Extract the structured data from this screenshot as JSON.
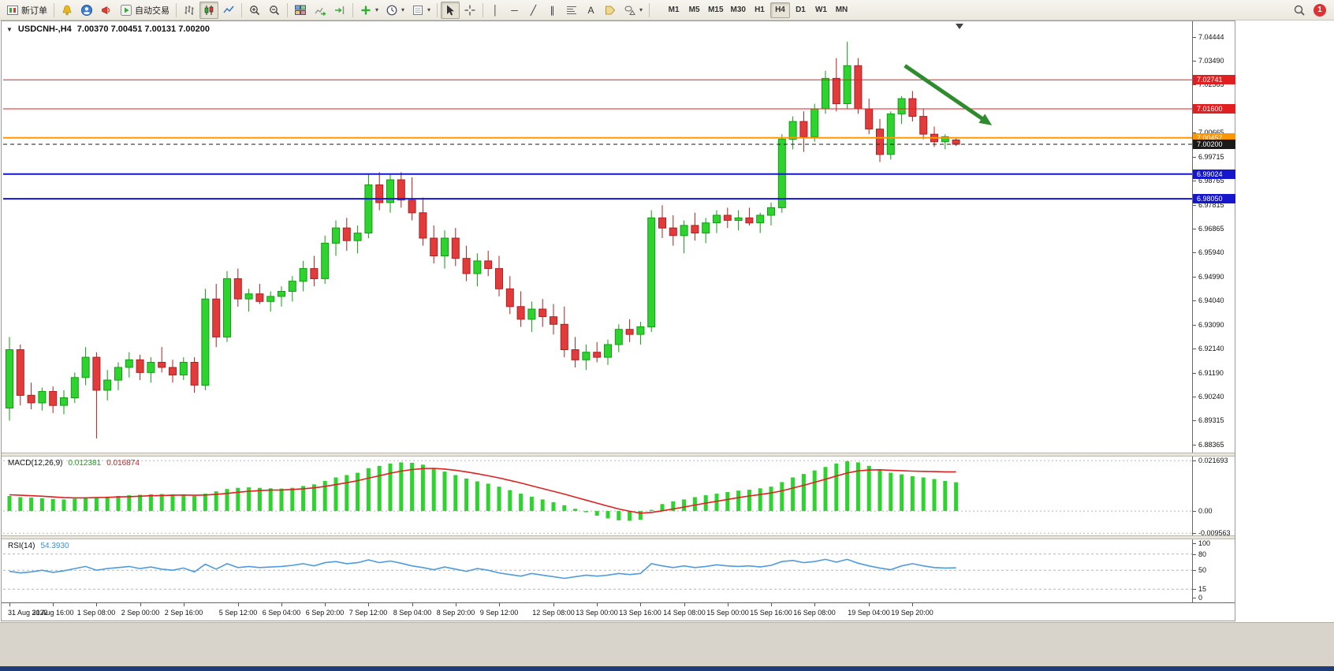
{
  "toolbar": {
    "new_order_label": "新订单",
    "autotrading_label": "自动交易",
    "timeframes": [
      "M1",
      "M5",
      "M15",
      "M30",
      "H1",
      "H4",
      "D1",
      "W1",
      "MN"
    ],
    "active_timeframe": "H4",
    "notification_count": "1"
  },
  "icons": {
    "dropdown": "▾",
    "title_caret": "▼",
    "vline": "│",
    "hline": "─",
    "trendline": "╱",
    "channel": "∥",
    "text_tool": "A"
  },
  "title": {
    "symbol_period": "USDCNH-,H4",
    "ohlc": "7.00370 7.00451 7.00131 7.00200"
  },
  "price_axis": {
    "ticks": [
      "7.04444",
      "7.03490",
      "7.02565",
      "7.00665",
      "6.99715",
      "6.98765",
      "6.97815",
      "6.96865",
      "6.95940",
      "6.94990",
      "6.94040",
      "6.93090",
      "6.92140",
      "6.91190",
      "6.90240",
      "6.89315",
      "6.88365"
    ]
  },
  "time_axis": {
    "labels": [
      {
        "text": "31 Aug 2022",
        "bar": 0
      },
      {
        "text": "31 Aug 16:00",
        "bar": 4
      },
      {
        "text": "1 Sep 08:00",
        "bar": 8
      },
      {
        "text": "2 Sep 00:00",
        "bar": 12
      },
      {
        "text": "2 Sep 16:00",
        "bar": 16
      },
      {
        "text": "5 Sep 12:00",
        "bar": 21
      },
      {
        "text": "6 Sep 04:00",
        "bar": 25
      },
      {
        "text": "6 Sep 20:00",
        "bar": 29
      },
      {
        "text": "7 Sep 12:00",
        "bar": 33
      },
      {
        "text": "8 Sep 04:00",
        "bar": 37
      },
      {
        "text": "8 Sep 20:00",
        "bar": 41
      },
      {
        "text": "9 Sep 12:00",
        "bar": 45
      },
      {
        "text": "12 Sep 08:00",
        "bar": 50
      },
      {
        "text": "13 Sep 00:00",
        "bar": 54
      },
      {
        "text": "13 Sep 16:00",
        "bar": 58
      },
      {
        "text": "14 Sep 08:00",
        "bar": 62
      },
      {
        "text": "15 Sep 00:00",
        "bar": 66
      },
      {
        "text": "15 Sep 16:00",
        "bar": 70
      },
      {
        "text": "16 Sep 08:00",
        "bar": 74
      },
      {
        "text": "19 Sep 04:00",
        "bar": 79
      },
      {
        "text": "19 Sep 20:00",
        "bar": 83
      }
    ]
  },
  "indicators": {
    "macd": {
      "name": "MACD(12,26,9)",
      "value_main": "0.012381",
      "value_signal": "0.016874",
      "axis": [
        {
          "text": "0.021693",
          "value": 0.021693
        },
        {
          "text": "0.00",
          "value": 0
        },
        {
          "text": "-0.009563",
          "value": -0.009563
        }
      ]
    },
    "rsi": {
      "name": "RSI(14)",
      "value": "54.3930",
      "axis": [
        {
          "text": "100",
          "value": 100
        },
        {
          "text": "80",
          "value": 80
        },
        {
          "text": "50",
          "value": 50
        },
        {
          "text": "15",
          "value": 15
        },
        {
          "text": "0",
          "value": 0
        }
      ],
      "dashed_levels": [
        80,
        50,
        15
      ]
    }
  },
  "chart_data": [
    {
      "type": "candlestick",
      "symbol": "USDCNH-",
      "period": "H4",
      "ylim": [
        6.8804,
        7.0499
      ],
      "colors": {
        "up": "#2fd32f",
        "up_stroke": "#0f9f0f",
        "down": "#e13b3b",
        "down_stroke": "#b12020"
      },
      "candles": [
        [
          6.898,
          6.926,
          6.893,
          6.921
        ],
        [
          6.921,
          6.923,
          6.899,
          6.903
        ],
        [
          6.903,
          6.908,
          6.8975,
          6.9
        ],
        [
          6.9,
          6.906,
          6.897,
          6.9045
        ],
        [
          6.9045,
          6.9065,
          6.896,
          6.899
        ],
        [
          6.899,
          6.905,
          6.8955,
          6.902
        ],
        [
          6.902,
          6.912,
          6.9,
          6.91
        ],
        [
          6.91,
          6.922,
          6.907,
          6.918
        ],
        [
          6.918,
          6.92,
          6.886,
          6.905
        ],
        [
          6.905,
          6.913,
          6.901,
          6.909
        ],
        [
          6.909,
          6.916,
          6.905,
          6.914
        ],
        [
          6.914,
          6.92,
          6.91,
          6.917
        ],
        [
          6.917,
          6.919,
          6.909,
          6.912
        ],
        [
          6.912,
          6.918,
          6.908,
          6.916
        ],
        [
          6.916,
          6.922,
          6.912,
          6.914
        ],
        [
          6.914,
          6.917,
          6.908,
          6.911
        ],
        [
          6.911,
          6.918,
          6.909,
          6.916
        ],
        [
          6.916,
          6.918,
          6.904,
          6.907
        ],
        [
          6.907,
          6.945,
          6.905,
          6.941
        ],
        [
          6.941,
          6.947,
          6.922,
          6.926
        ],
        [
          6.926,
          6.952,
          6.924,
          6.949
        ],
        [
          6.949,
          6.953,
          6.938,
          6.941
        ],
        [
          6.941,
          6.945,
          6.936,
          6.943
        ],
        [
          6.943,
          6.947,
          6.939,
          6.94
        ],
        [
          6.94,
          6.944,
          6.936,
          6.942
        ],
        [
          6.942,
          6.946,
          6.938,
          6.944
        ],
        [
          6.944,
          6.95,
          6.94,
          6.948
        ],
        [
          6.948,
          6.956,
          6.944,
          6.953
        ],
        [
          6.953,
          6.958,
          6.946,
          6.949
        ],
        [
          6.949,
          6.966,
          6.947,
          6.963
        ],
        [
          6.963,
          6.972,
          6.958,
          6.969
        ],
        [
          6.969,
          6.973,
          6.96,
          6.964
        ],
        [
          6.964,
          6.97,
          6.959,
          6.967
        ],
        [
          6.967,
          6.99,
          6.965,
          6.986
        ],
        [
          6.986,
          6.991,
          6.976,
          6.979
        ],
        [
          6.979,
          6.99,
          6.975,
          6.988
        ],
        [
          6.988,
          6.991,
          6.977,
          6.98
        ],
        [
          6.98,
          6.989,
          6.972,
          6.975
        ],
        [
          6.975,
          6.981,
          6.962,
          6.965
        ],
        [
          6.965,
          6.97,
          6.955,
          6.958
        ],
        [
          6.958,
          6.968,
          6.953,
          6.965
        ],
        [
          6.965,
          6.969,
          6.954,
          6.957
        ],
        [
          6.957,
          6.962,
          6.948,
          6.951
        ],
        [
          6.951,
          6.959,
          6.946,
          6.956
        ],
        [
          6.956,
          6.96,
          6.95,
          6.953
        ],
        [
          6.953,
          6.958,
          6.942,
          6.945
        ],
        [
          6.945,
          6.95,
          6.935,
          6.938
        ],
        [
          6.938,
          6.944,
          6.93,
          6.933
        ],
        [
          6.933,
          6.94,
          6.928,
          6.937
        ],
        [
          6.937,
          6.941,
          6.93,
          6.934
        ],
        [
          6.934,
          6.939,
          6.927,
          6.931
        ],
        [
          6.931,
          6.938,
          6.918,
          6.921
        ],
        [
          6.921,
          6.926,
          6.914,
          6.917
        ],
        [
          6.917,
          6.923,
          6.913,
          6.92
        ],
        [
          6.92,
          6.924,
          6.916,
          6.918
        ],
        [
          6.918,
          6.925,
          6.915,
          6.923
        ],
        [
          6.923,
          6.931,
          6.92,
          6.929
        ],
        [
          6.929,
          6.933,
          6.924,
          6.927
        ],
        [
          6.927,
          6.932,
          6.923,
          6.93
        ],
        [
          6.93,
          6.976,
          6.928,
          6.973
        ],
        [
          6.973,
          6.978,
          6.965,
          6.969
        ],
        [
          6.969,
          6.974,
          6.962,
          6.966
        ],
        [
          6.966,
          6.972,
          6.959,
          6.97
        ],
        [
          6.97,
          6.975,
          6.964,
          6.967
        ],
        [
          6.967,
          6.973,
          6.963,
          6.971
        ],
        [
          6.971,
          6.976,
          6.967,
          6.974
        ],
        [
          6.974,
          6.977,
          6.969,
          6.972
        ],
        [
          6.972,
          6.976,
          6.968,
          6.973
        ],
        [
          6.973,
          6.977,
          6.97,
          6.971
        ],
        [
          6.971,
          6.975,
          6.967,
          6.974
        ],
        [
          6.974,
          6.979,
          6.97,
          6.977
        ],
        [
          6.977,
          7.006,
          6.975,
          7.004
        ],
        [
          7.004,
          7.013,
          7.0,
          7.011
        ],
        [
          7.011,
          7.015,
          6.999,
          7.005
        ],
        [
          7.005,
          7.018,
          7.003,
          7.016
        ],
        [
          7.016,
          7.031,
          7.014,
          7.028
        ],
        [
          7.028,
          7.036,
          7.015,
          7.018
        ],
        [
          7.018,
          7.0425,
          7.016,
          7.033
        ],
        [
          7.033,
          7.036,
          7.014,
          7.016
        ],
        [
          7.016,
          7.02,
          7.006,
          7.008
        ],
        [
          7.008,
          7.012,
          6.995,
          6.998
        ],
        [
          6.998,
          7.015,
          6.996,
          7.014
        ],
        [
          7.014,
          7.021,
          7.01,
          7.02
        ],
        [
          7.02,
          7.023,
          7.011,
          7.013
        ],
        [
          7.013,
          7.016,
          7.004,
          7.006
        ],
        [
          7.006,
          7.009,
          7.001,
          7.003
        ],
        [
          7.003,
          7.006,
          7.0,
          7.005
        ],
        [
          7.0037,
          7.00451,
          7.00131,
          7.002
        ]
      ],
      "levels": [
        {
          "price": 7.02741,
          "label": "7.02741",
          "color": "#e02020",
          "width": 1,
          "style": "solid"
        },
        {
          "price": 7.016,
          "label": "7.01600",
          "color": "#e02020",
          "width": 1,
          "style": "solid"
        },
        {
          "price": 7.00457,
          "label": "7.00457",
          "color": "#ff9800",
          "width": 2,
          "style": "solid"
        },
        {
          "price": 7.002,
          "label": "7.00200",
          "color": "#1a1a1a",
          "width": 1,
          "style": "dashed"
        },
        {
          "price": 6.99024,
          "label": "6.99024",
          "color": "#1616cc",
          "width": 2,
          "style": "solid"
        },
        {
          "price": 6.9805,
          "label": "6.98050",
          "color": "#1616cc",
          "width": 2,
          "style": "solid"
        }
      ],
      "annotations": [
        {
          "type": "arrow",
          "color": "#2e8b2e",
          "from_bar": 82.3,
          "from_price": 7.033,
          "to_bar": 90.3,
          "to_price": 7.0095,
          "stroke_width": 5
        }
      ]
    },
    {
      "type": "bar",
      "name": "MACD",
      "ylim": [
        -0.0105,
        0.0235
      ],
      "color": "#2fd32f",
      "signal_color": "#e02020",
      "histogram": [
        0.0065,
        0.006,
        0.0058,
        0.0055,
        0.0052,
        0.005,
        0.0053,
        0.0058,
        0.006,
        0.0062,
        0.0065,
        0.0068,
        0.007,
        0.0072,
        0.0073,
        0.0072,
        0.007,
        0.0065,
        0.0075,
        0.0085,
        0.0095,
        0.01,
        0.0102,
        0.01,
        0.0098,
        0.0097,
        0.01,
        0.0108,
        0.0115,
        0.013,
        0.0145,
        0.0155,
        0.0165,
        0.0185,
        0.0195,
        0.0205,
        0.021,
        0.0208,
        0.02,
        0.0185,
        0.017,
        0.0155,
        0.014,
        0.0128,
        0.0118,
        0.0105,
        0.009,
        0.0075,
        0.0062,
        0.005,
        0.0038,
        0.0025,
        0.001,
        -0.0005,
        -0.002,
        -0.0032,
        -0.004,
        -0.0042,
        -0.0038,
        0.0005,
        0.003,
        0.0042,
        0.005,
        0.006,
        0.0068,
        0.0075,
        0.0082,
        0.0088,
        0.0092,
        0.0098,
        0.0105,
        0.0125,
        0.0145,
        0.016,
        0.0175,
        0.019,
        0.0205,
        0.0215,
        0.021,
        0.0195,
        0.018,
        0.0165,
        0.0158,
        0.015,
        0.0145,
        0.0138,
        0.013,
        0.0124
      ],
      "signal": [
        0.007,
        0.0068,
        0.0066,
        0.0064,
        0.0061,
        0.0058,
        0.0057,
        0.0057,
        0.0058,
        0.0059,
        0.0061,
        0.0062,
        0.0064,
        0.0066,
        0.0067,
        0.0068,
        0.0069,
        0.0068,
        0.0069,
        0.0072,
        0.0076,
        0.0081,
        0.0085,
        0.0088,
        0.009,
        0.0091,
        0.0093,
        0.0096,
        0.01,
        0.0106,
        0.0114,
        0.0122,
        0.0131,
        0.0142,
        0.0152,
        0.0163,
        0.0172,
        0.0179,
        0.0183,
        0.0184,
        0.0181,
        0.0176,
        0.0169,
        0.0161,
        0.0152,
        0.0143,
        0.0132,
        0.0121,
        0.0109,
        0.0097,
        0.0085,
        0.0073,
        0.006,
        0.0047,
        0.0034,
        0.0021,
        0.0009,
        -0.0001,
        -0.0009,
        -0.0006,
        0.0001,
        0.0009,
        0.0017,
        0.0026,
        0.0034,
        0.0042,
        0.005,
        0.0058,
        0.0065,
        0.0071,
        0.0078,
        0.0087,
        0.0099,
        0.0111,
        0.0124,
        0.0137,
        0.0151,
        0.0164,
        0.0173,
        0.0177,
        0.0178,
        0.0176,
        0.0174,
        0.0172,
        0.0171,
        0.017,
        0.0169,
        0.0169
      ]
    },
    {
      "type": "line",
      "name": "RSI",
      "ylim": [
        0,
        100
      ],
      "color": "#4f9bdc",
      "values": [
        48,
        45,
        47,
        50,
        46,
        49,
        53,
        57,
        50,
        53,
        55,
        57,
        53,
        56,
        52,
        50,
        54,
        47,
        61,
        52,
        62,
        55,
        57,
        55,
        56,
        57,
        59,
        62,
        58,
        64,
        66,
        62,
        64,
        69,
        64,
        67,
        63,
        58,
        55,
        51,
        56,
        52,
        48,
        53,
        50,
        45,
        42,
        39,
        44,
        41,
        38,
        35,
        38,
        41,
        39,
        41,
        44,
        42,
        44,
        62,
        58,
        55,
        58,
        55,
        57,
        60,
        58,
        57,
        58,
        56,
        59,
        66,
        68,
        64,
        66,
        70,
        65,
        70,
        63,
        58,
        54,
        51,
        58,
        62,
        58,
        55,
        54,
        54.4
      ]
    }
  ]
}
